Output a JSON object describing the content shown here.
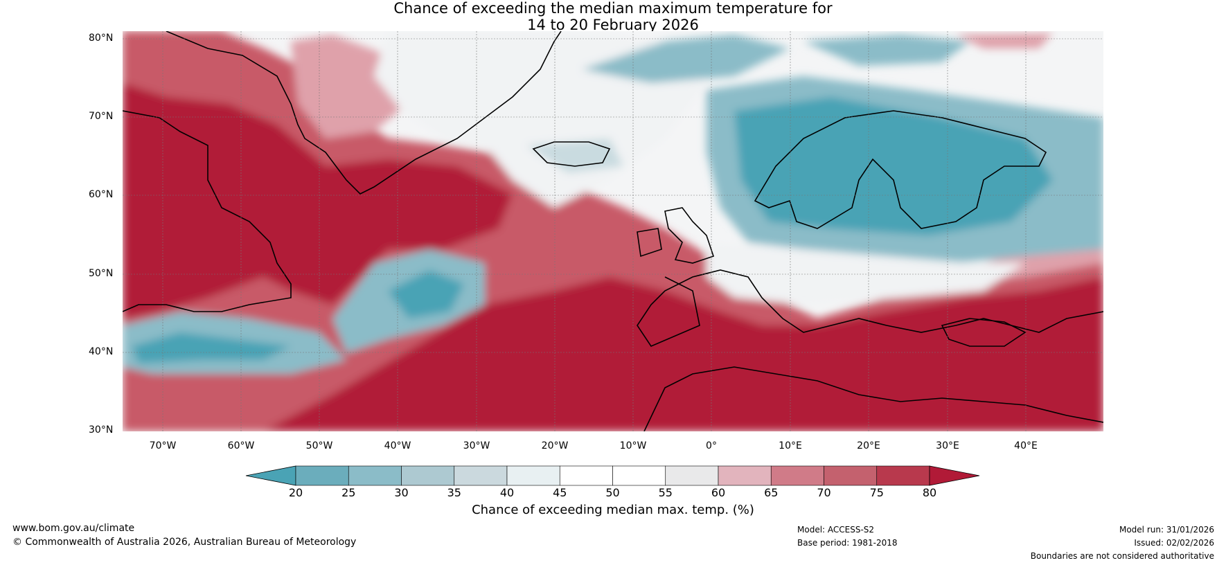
{
  "title_line1": "Chance of exceeding the median maximum temperature for",
  "title_line2": "14 to 20 February 2026",
  "lat_labels": [
    "80°N",
    "70°N",
    "60°N",
    "50°N",
    "40°N",
    "30°N"
  ],
  "lon_labels": [
    "70°W",
    "60°W",
    "50°W",
    "40°W",
    "30°W",
    "20°W",
    "10°W",
    "0°",
    "10°E",
    "20°E",
    "30°E",
    "40°E"
  ],
  "colorbar": {
    "ticks": [
      "20",
      "25",
      "30",
      "35",
      "40",
      "45",
      "50",
      "55",
      "60",
      "65",
      "70",
      "75",
      "80"
    ],
    "colors": [
      "#4aa3b5",
      "#6badbc",
      "#8bbcc8",
      "#adc9d1",
      "#cbd9de",
      "#e8f0f2",
      "#ffffff",
      "#ffffff",
      "#e9e9ea",
      "#e2b4bd",
      "#d07b88",
      "#c4616e",
      "#b8394d"
    ],
    "low_color": "#4aa3b5",
    "high_color": "#b11a37",
    "title": "Chance of exceeding median max. temp. (%)"
  },
  "palette": {
    "red_dark": "#b11a37",
    "red_mid": "#c85a68",
    "red_light": "#dfa1aa",
    "pink": "#edd3d7",
    "neutral": "#f2f4f5",
    "blue_light": "#c9dbe0",
    "blue_mid": "#8bbcc8",
    "blue_dark": "#4aa3b5"
  },
  "footer": {
    "url": "www.bom.gov.au/climate",
    "copyright": "© Commonwealth of Australia 2026, Australian Bureau of Meteorology",
    "model": "Model: ACCESS-S2",
    "base_period": "Base period: 1981-2018",
    "model_run": "Model run: 31/01/2026",
    "issued": "Issued: 02/02/2026",
    "disclaimer": "Boundaries are not considered authoritative"
  }
}
